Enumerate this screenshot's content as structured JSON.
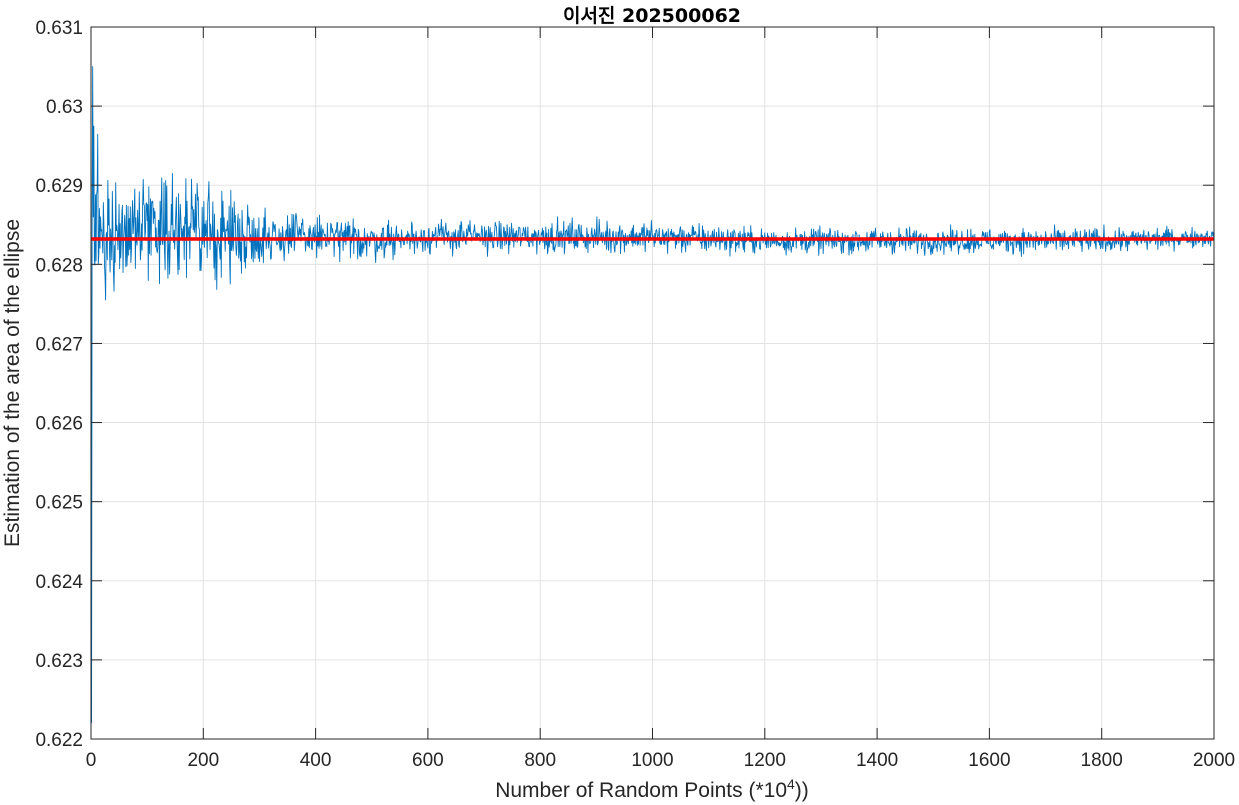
{
  "chart_data": {
    "type": "line",
    "title": "이서진 202500062",
    "xlabel": "Number  of  Random  Points  (*10",
    "xlabel_superscript": "4",
    "xlabel_suffix": "))",
    "ylabel": "Estimation of the area of the ellipse",
    "xlim": [
      0,
      2000
    ],
    "ylim": [
      0.622,
      0.631
    ],
    "x_ticks": [
      "0",
      "200",
      "400",
      "600",
      "800",
      "1000",
      "1200",
      "1400",
      "1600",
      "1800",
      "2000"
    ],
    "y_ticks": [
      "0.622",
      "0.623",
      "0.624",
      "0.625",
      "0.626",
      "0.627",
      "0.628",
      "0.629",
      "0.63",
      "0.631"
    ],
    "grid": true,
    "reference_value": 0.62832,
    "series": [
      {
        "color": "#0072BD",
        "x_range": [
          1,
          2000
        ],
        "envelope_x": [
          1,
          3,
          6,
          10,
          20,
          50,
          100,
          200,
          300,
          400,
          500,
          600,
          800,
          1000,
          1200,
          1400,
          1600,
          1800,
          2000
        ],
        "envelope_min": [
          0.6222,
          0.6252,
          0.6264,
          0.627,
          0.6274,
          0.6277,
          0.6278,
          0.6276,
          0.6279,
          0.628,
          0.628,
          0.6281,
          0.6281,
          0.6281,
          0.6281,
          0.6281,
          0.6281,
          0.6281,
          0.6282
        ],
        "envelope_max": [
          0.6302,
          0.6305,
          0.6303,
          0.6299,
          0.6294,
          0.6291,
          0.6293,
          0.6292,
          0.6288,
          0.6287,
          0.6286,
          0.6286,
          0.6286,
          0.6286,
          0.6285,
          0.6285,
          0.6285,
          0.6285,
          0.6285
        ]
      },
      {
        "color": "#FF0000",
        "x": [
          0,
          2000
        ],
        "values": [
          0.62832,
          0.62832
        ]
      }
    ]
  }
}
